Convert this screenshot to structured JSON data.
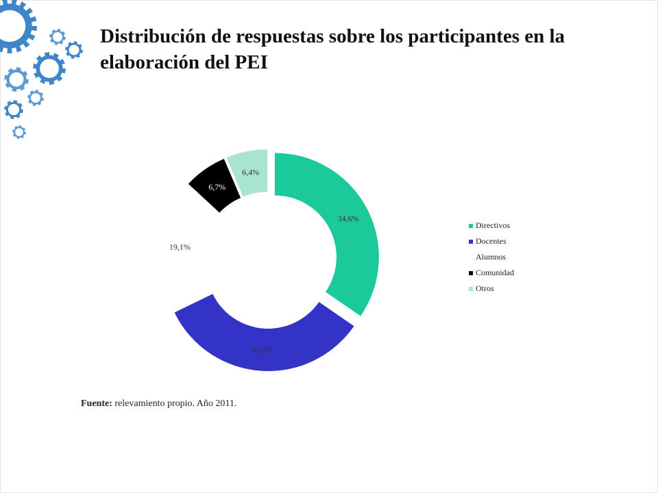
{
  "slide": {
    "title": "Distribución de respuestas sobre los participantes en la elaboración del PEI",
    "source_label": "Fuente:",
    "source_text": "relevamiento propio. Año 2011."
  },
  "decoration": {
    "icon": "gears-icon",
    "colors": [
      "#3f86c8",
      "#5b9bd5"
    ]
  },
  "chart_data": {
    "type": "pie",
    "variant": "doughnut-exploded",
    "title": "",
    "categories": [
      "Directivos",
      "Docentes",
      "Alumnos",
      "Comunidad",
      "Otros"
    ],
    "values": [
      34.6,
      33.2,
      19.1,
      6.7,
      6.4
    ],
    "labels": [
      "34,6%",
      "33,2%",
      "19,1%",
      "6,7%",
      "6,4%"
    ],
    "colors": [
      "#1cc99a",
      "#3333c8",
      "#ffffff",
      "#000000",
      "#a8e4cf"
    ],
    "label_colors": [
      "#333333",
      "#333333",
      "#333333",
      "#ffffff",
      "#333333"
    ],
    "legend": {
      "position": "right"
    }
  }
}
